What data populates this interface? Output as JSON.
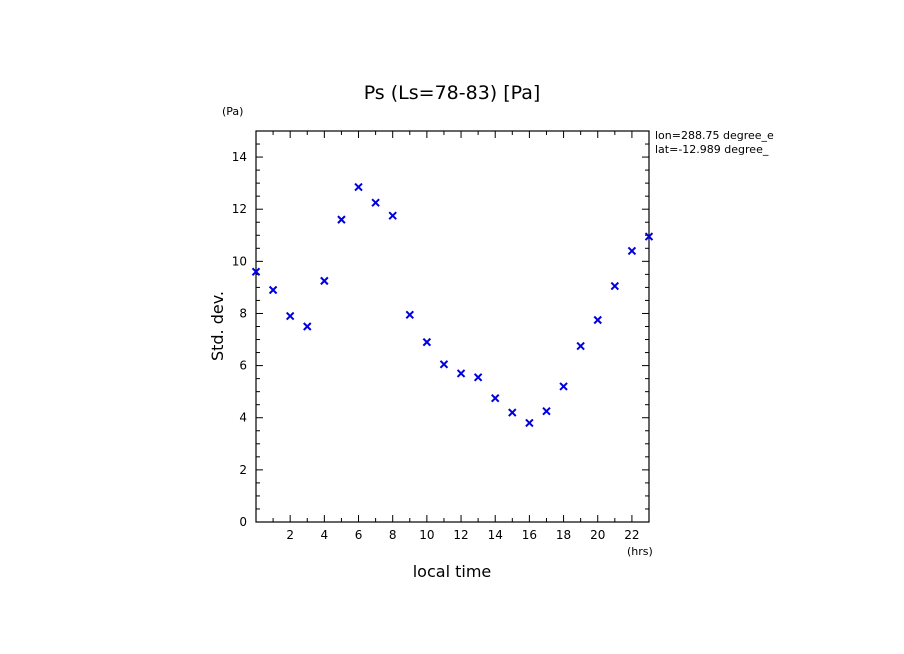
{
  "chart_data": {
    "type": "scatter",
    "title": "Ps (Ls=78-83) [Pa]",
    "xlabel": "local time",
    "ylabel": "Std. dev.",
    "x_unit": "(hrs)",
    "y_unit": "(Pa)",
    "xlim": [
      0.0,
      23.0
    ],
    "ylim": [
      0,
      15
    ],
    "x_ticks_major": [
      2,
      4,
      6,
      8,
      10,
      12,
      14,
      16,
      18,
      20,
      22
    ],
    "y_ticks_major": [
      0,
      2,
      4,
      6,
      8,
      10,
      12,
      14
    ],
    "annotations": [
      "lon=288.75 degree_e",
      "lat=-12.989 degree_"
    ],
    "marker": "x",
    "color": "#0000dd",
    "series": [
      {
        "x": [
          0.0,
          1.0,
          2.0,
          3.0,
          4.0,
          5.0,
          6.0,
          7.0,
          8.0,
          9.0,
          10.0,
          11.0,
          12.0,
          13.0,
          14.0,
          15.0,
          16.0,
          17.0,
          18.0,
          19.0,
          20.0,
          21.0,
          22.0,
          23.0
        ],
        "y": [
          9.6,
          8.9,
          7.9,
          7.5,
          9.25,
          11.6,
          12.85,
          12.25,
          11.75,
          7.95,
          6.9,
          6.05,
          5.7,
          5.55,
          4.75,
          4.2,
          3.8,
          4.25,
          5.2,
          6.75,
          7.75,
          9.05,
          10.4,
          10.95
        ]
      }
    ]
  }
}
